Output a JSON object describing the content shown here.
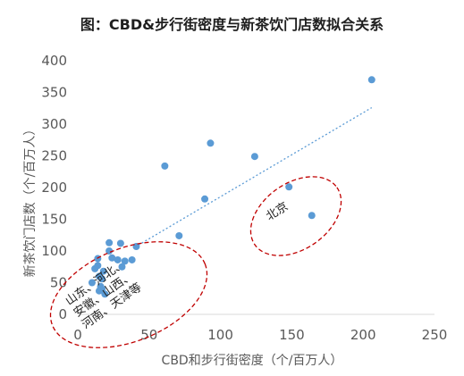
{
  "chart_data": {
    "type": "scatter",
    "title": "图：CBD&步行街密度与新茶饮门店数拟合关系",
    "xlabel": "CBD和步行街密度（个/百万人）",
    "ylabel": "新茶饮门店数（个/百万人）",
    "xlim": [
      0,
      250
    ],
    "ylim": [
      0,
      400
    ],
    "xticks": [
      0,
      50,
      100,
      150,
      200,
      250
    ],
    "yticks": [
      0,
      50,
      100,
      150,
      200,
      250,
      300,
      350,
      400
    ],
    "grid": false,
    "series_color": "#5b9bd5",
    "points": [
      {
        "x": 206,
        "y": 370
      },
      {
        "x": 93,
        "y": 270
      },
      {
        "x": 124,
        "y": 249
      },
      {
        "x": 61,
        "y": 234
      },
      {
        "x": 148,
        "y": 201
      },
      {
        "x": 89,
        "y": 182
      },
      {
        "x": 164,
        "y": 156
      },
      {
        "x": 71,
        "y": 124
      },
      {
        "x": 41,
        "y": 107
      },
      {
        "x": 22,
        "y": 113
      },
      {
        "x": 30,
        "y": 112
      },
      {
        "x": 22,
        "y": 100
      },
      {
        "x": 14,
        "y": 88
      },
      {
        "x": 24,
        "y": 89
      },
      {
        "x": 28,
        "y": 86
      },
      {
        "x": 38,
        "y": 86
      },
      {
        "x": 33,
        "y": 84
      },
      {
        "x": 14,
        "y": 77
      },
      {
        "x": 31,
        "y": 75
      },
      {
        "x": 12,
        "y": 72
      },
      {
        "x": 18,
        "y": 68
      },
      {
        "x": 15,
        "y": 60
      },
      {
        "x": 17,
        "y": 56
      },
      {
        "x": 10,
        "y": 50
      },
      {
        "x": 16,
        "y": 44
      },
      {
        "x": 17,
        "y": 40
      },
      {
        "x": 15,
        "y": 37
      },
      {
        "x": 19,
        "y": 32
      }
    ],
    "trendline": {
      "x": [
        40,
        206
      ],
      "y": [
        106,
        326
      ]
    },
    "annotations": [
      {
        "text": "北京"
      },
      {
        "text": "山东、河北、安徽、山西、河南、天津等"
      }
    ]
  }
}
